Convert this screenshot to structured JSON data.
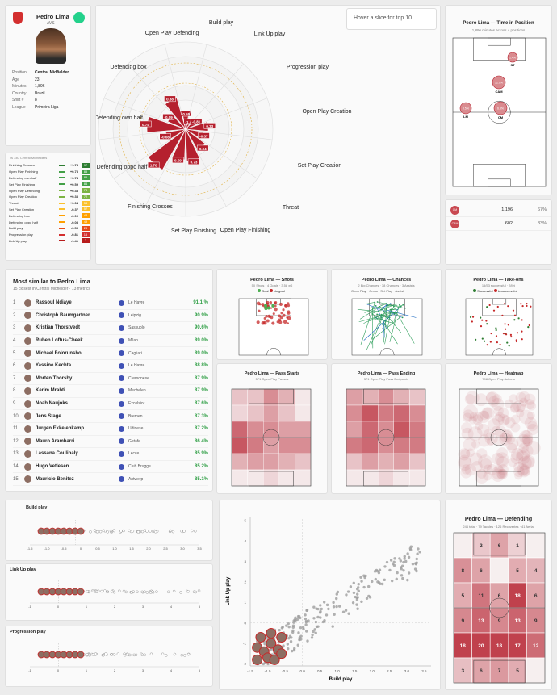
{
  "player": {
    "name": "Pedro Lima",
    "club": "AVS",
    "info": [
      {
        "label": "Position",
        "value": "Central Midfielder"
      },
      {
        "label": "Age",
        "value": "23"
      },
      {
        "label": "Minutes",
        "value": "1,896"
      },
      {
        "label": "Country",
        "value": "Brazil"
      },
      {
        "label": "Shirt #",
        "value": "8"
      },
      {
        "label": "League",
        "value": "Primeira Liga"
      }
    ]
  },
  "metrics": {
    "header": "vs 340 Central Midfielders",
    "rows": [
      {
        "name": "Finishing Crosses",
        "z": "+1.78",
        "pct": "97",
        "color": "#2e7d32"
      },
      {
        "name": "Open Play Finishing",
        "z": "+0.73",
        "pct": "85",
        "color": "#43a047"
      },
      {
        "name": "Defending own half",
        "z": "+0.74",
        "pct": "85",
        "color": "#43a047"
      },
      {
        "name": "Set Play Finishing",
        "z": "+0.59",
        "pct": "84",
        "color": "#43a047"
      },
      {
        "name": "Open Play Defending",
        "z": "+0.38",
        "pct": "73",
        "color": "#7cb342"
      },
      {
        "name": "Open Play Creation",
        "z": "+0.33",
        "pct": "72",
        "color": "#7cb342"
      },
      {
        "name": "Threat",
        "z": "+0.04",
        "pct": "54",
        "color": "#fbc02d"
      },
      {
        "name": "Set Play Creation",
        "z": "-0.37",
        "pct": "57",
        "color": "#fbc02d"
      },
      {
        "name": "Defending box",
        "z": "-0.09",
        "pct": "48",
        "color": "#ffa000"
      },
      {
        "name": "Defending oppo half",
        "z": "-0.08",
        "pct": "49",
        "color": "#ffa000"
      },
      {
        "name": "Build play",
        "z": "-0.55",
        "pct": "23",
        "color": "#e64a19"
      },
      {
        "name": "Progression play",
        "z": "-0.81",
        "pct": "15",
        "color": "#d32f2f"
      },
      {
        "name": "Link Up play",
        "z": "-1.41",
        "pct": "2",
        "color": "#b71c1c"
      }
    ]
  },
  "radar": {
    "hover_text": "Hover a slice for top 10",
    "axes": [
      "Build play",
      "Link Up play",
      "Progression play",
      "Open Play Creation",
      "Set Play Creation",
      "Threat",
      "Open Play Finishing",
      "Set Play Finishing",
      "Finishing Crosses",
      "Defending oppo half",
      "Defending own half",
      "Defending box",
      "Open Play Defending"
    ],
    "values": [
      "-0.55",
      "-1.41",
      "-0.81",
      "0.33",
      "-0.37",
      "0.04",
      "0.73",
      "0.59",
      "1.78",
      "-0.08",
      "0.74",
      "-0.09",
      "0.38"
    ]
  },
  "position_card": {
    "title": "Pedro Lima — Time in Position",
    "subtitle": "1,896 minutes across 4 positions",
    "dots": [
      {
        "label": "ST",
        "text": "1.4%"
      },
      {
        "label": "CAM",
        "text": "12.0%"
      },
      {
        "label": "LM",
        "text": "0.5%"
      },
      {
        "label": "CM",
        "text": "6.3%"
      }
    ]
  },
  "minutes_table": [
    {
      "pos": "CM",
      "min": "1,196",
      "pct": "67%"
    },
    {
      "pos": "CAM",
      "min": "602",
      "pct": "33%"
    }
  ],
  "similar": {
    "title": "Most similar to Pedro Lima",
    "subtitle": "15 closest in Central Midfielder · 13 metrics",
    "rows": [
      {
        "rank": "1",
        "name": "Rassoul Ndiaye",
        "club": "Le Havre",
        "score": "91.1 %"
      },
      {
        "rank": "2",
        "name": "Christoph Baumgartner",
        "club": "Leipzig",
        "score": "90.9%"
      },
      {
        "rank": "3",
        "name": "Kristian Thorstvedt",
        "club": "Sassuolo",
        "score": "90.6%"
      },
      {
        "rank": "4",
        "name": "Ruben Loftus-Cheek",
        "club": "Milan",
        "score": "89.0%"
      },
      {
        "rank": "5",
        "name": "Michael Folorunsho",
        "club": "Cagliari",
        "score": "89.0%"
      },
      {
        "rank": "6",
        "name": "Yassine Kechta",
        "club": "Le Havre",
        "score": "88.8%"
      },
      {
        "rank": "7",
        "name": "Morten Thorsby",
        "club": "Cremonese",
        "score": "87.9%"
      },
      {
        "rank": "8",
        "name": "Kerim Mrabti",
        "club": "Mechelen",
        "score": "87.9%"
      },
      {
        "rank": "9",
        "name": "Noah Naujoks",
        "club": "Excelsior",
        "score": "87.6%"
      },
      {
        "rank": "10",
        "name": "Jens Stage",
        "club": "Bremen",
        "score": "87.3%"
      },
      {
        "rank": "11",
        "name": "Jurgen Ekkelenkamp",
        "club": "Udinese",
        "score": "87.2%"
      },
      {
        "rank": "12",
        "name": "Mauro Arambarri",
        "club": "Getafe",
        "score": "86.4%"
      },
      {
        "rank": "13",
        "name": "Lassana Coulibaly",
        "club": "Lecce",
        "score": "85.9%"
      },
      {
        "rank": "14",
        "name": "Hugo Vetlesen",
        "club": "Club Brugge",
        "score": "85.2%"
      },
      {
        "rank": "15",
        "name": "Mauricio Benitez",
        "club": "Antwerp",
        "score": "85.1%"
      }
    ]
  },
  "shots": {
    "title": "Pedro Lima — Shots",
    "subtitle": "50 Shots · 4 Goals · 3.58 xG",
    "legend": [
      "Goal",
      "No goal"
    ]
  },
  "chances": {
    "title": "Pedro Lima — Chances",
    "subtitle": "2 Big Chances · 38 Chances · 3 Assists",
    "legend": [
      "Open Play",
      "Cross",
      "Set Play",
      "Assist"
    ]
  },
  "takeons": {
    "title": "Pedro Lima — Take-ons",
    "subtitle": "15/53 successful · 28%",
    "legend": [
      "Successful",
      "Unsuccessful"
    ]
  },
  "pass_starts": {
    "title": "Pedro Lima — Pass Starts",
    "subtitle": "571 Open Play Passes"
  },
  "pass_ending": {
    "title": "Pedro Lima — Pass Ending",
    "subtitle": "571 Open Play Pass Endpoints"
  },
  "heatmap": {
    "title": "Pedro Lima — Heatmap",
    "subtitle": "798 Open Play Actions"
  },
  "defending": {
    "title": "Pedro Lima — Defending",
    "subtitle": "246 total · 79 Tackles · 126 Recoveries · 41 Aerial",
    "grid": [
      [
        "",
        "2",
        "6",
        "1",
        ""
      ],
      [
        "8",
        "6",
        "",
        "5",
        "4"
      ],
      [
        "5",
        "11",
        "6",
        "18",
        "6"
      ],
      [
        "9",
        "13",
        "9",
        "13",
        "9"
      ],
      [
        "18",
        "20",
        "18",
        "17",
        "12"
      ],
      [
        "3",
        "6",
        "7",
        "5",
        ""
      ]
    ]
  },
  "dist": [
    {
      "title": "Build play",
      "ticks": [
        "-1.5",
        "-1.0",
        "-0.5",
        "0",
        "0.5",
        "1.0",
        "1.5",
        "2.0",
        "2.5",
        "3.0",
        "3.5"
      ]
    },
    {
      "title": "Link Up play",
      "ticks": [
        "-1",
        "0",
        "1",
        "2",
        "3",
        "4",
        "5"
      ]
    },
    {
      "title": "Progression play",
      "ticks": [
        "-1",
        "0",
        "1",
        "2",
        "3",
        "4",
        "5"
      ]
    }
  ],
  "scatter": {
    "xlabel": "Build play",
    "ylabel": "Link Up play",
    "xticks": [
      "-1.5",
      "-1.0",
      "-0.5",
      "0.0",
      "0.5",
      "1.0",
      "1.5",
      "2.0",
      "2.5",
      "3.0",
      "3.5"
    ],
    "yticks": [
      "5",
      "4",
      "3",
      "2",
      "1",
      "0",
      "-1",
      "-2"
    ]
  }
}
